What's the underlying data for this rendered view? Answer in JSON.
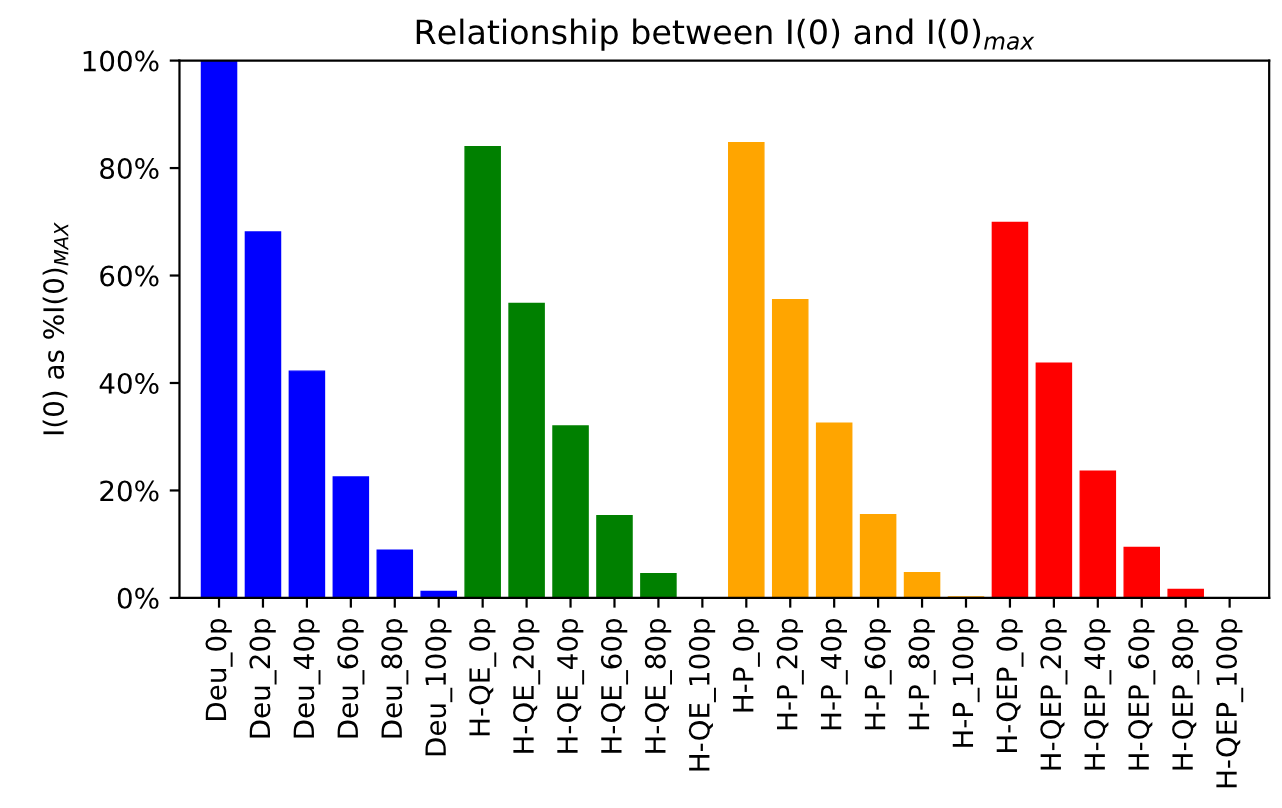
{
  "chart_data": {
    "type": "bar",
    "title": "Relationship between I(0) and I(0)$_{max}$",
    "ylabel": "I(0) as %I(0)$_{MAX}$",
    "categories": [
      "Deu_0p",
      "Deu_20p",
      "Deu_40p",
      "Deu_60p",
      "Deu_80p",
      "Deu_100p",
      "H-QE_0p",
      "H-QE_20p",
      "H-QE_40p",
      "H-QE_60p",
      "H-QE_80p",
      "H-QE_100p",
      "H-P_0p",
      "H-P_20p",
      "H-P_40p",
      "H-P_60p",
      "H-P_80p",
      "H-P_100p",
      "H-QEP_0p",
      "H-QEP_20p",
      "H-QEP_40p",
      "H-QEP_60p",
      "H-QEP_80p",
      "H-QEP_100p"
    ],
    "values": [
      100,
      68.1,
      42.2,
      22.5,
      8.9,
      1.2,
      84.0,
      54.8,
      32.0,
      15.3,
      4.5,
      0,
      84.7,
      55.5,
      32.5,
      15.5,
      4.7,
      0.2,
      69.9,
      43.7,
      23.6,
      9.4,
      1.6,
      0
    ],
    "colors": [
      "#0000ff",
      "#0000ff",
      "#0000ff",
      "#0000ff",
      "#0000ff",
      "#0000ff",
      "#008000",
      "#008000",
      "#008000",
      "#008000",
      "#008000",
      "#008000",
      "#ffa500",
      "#ffa500",
      "#ffa500",
      "#ffa500",
      "#ffa500",
      "#ffa500",
      "#ff0000",
      "#ff0000",
      "#ff0000",
      "#ff0000",
      "#ff0000",
      "#ff0000"
    ],
    "ylim": [
      0,
      100
    ],
    "yticks": [
      {
        "value": 0,
        "label": "0%"
      },
      {
        "value": 20,
        "label": "20%"
      },
      {
        "value": 40,
        "label": "40%"
      },
      {
        "value": 60,
        "label": "60%"
      },
      {
        "value": 80,
        "label": "80%"
      },
      {
        "value": 100,
        "label": "100%"
      }
    ],
    "grid": false,
    "legend": false
  }
}
